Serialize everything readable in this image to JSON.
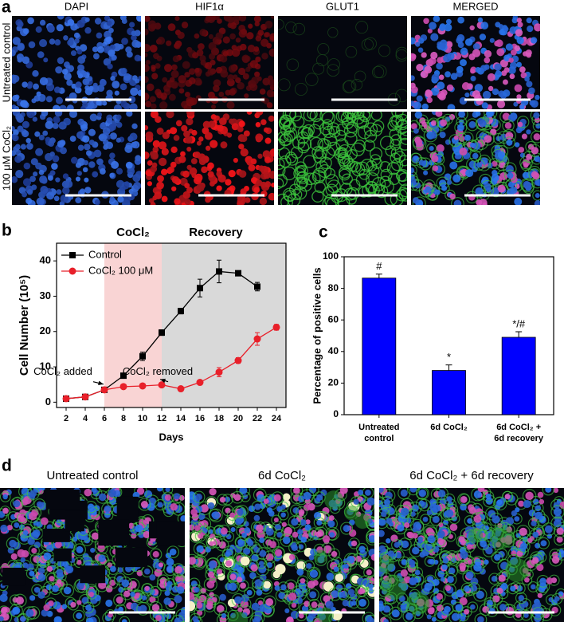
{
  "panel_labels": [
    "a",
    "b",
    "c",
    "d"
  ],
  "panel_a": {
    "columns": [
      "DAPI",
      "HIF1α",
      "GLUT1",
      "MERGED"
    ],
    "rows": [
      "Untreated control",
      "100 μM CoCl₂"
    ]
  },
  "chart_data": [
    {
      "type": "line",
      "xlabel": "Days",
      "ylabel": "Cell Number (10⁵)",
      "x": [
        2,
        4,
        6,
        8,
        10,
        12,
        14,
        16,
        18,
        20,
        22,
        24
      ],
      "xlim": [
        1,
        25
      ],
      "xticks": [
        2,
        4,
        6,
        8,
        10,
        12,
        14,
        16,
        18,
        20,
        22,
        24
      ],
      "ylim": [
        -1.5,
        45
      ],
      "yticks": [
        0,
        10,
        20,
        30,
        40
      ],
      "legend": "upper left",
      "regions": [
        {
          "label": "CoCl₂",
          "start": 6,
          "end": 12,
          "color": "#f9d4d4"
        },
        {
          "label": "Recovery",
          "start": 12,
          "end": 25,
          "color": "#d9d9d9"
        }
      ],
      "annotations": [
        {
          "text": "CoCl₂ added",
          "x": 6
        },
        {
          "text": "CoCl₂ removed",
          "x": 12
        }
      ],
      "series": [
        {
          "name": "Control",
          "color": "#000000",
          "marker": "square",
          "values": [
            1,
            1.5,
            3.5,
            7.5,
            13,
            19.7,
            25.8,
            32.3,
            37,
            36.5,
            32.7,
            null
          ],
          "errors": [
            0.3,
            0.3,
            0.4,
            0.5,
            1.2,
            0.8,
            0.8,
            2.5,
            3.2,
            0.5,
            1.2,
            null
          ]
        },
        {
          "name": "CoCl₂ 100 μM",
          "color": "#e8202a",
          "marker": "circle",
          "values": [
            1,
            1.5,
            3.5,
            4.4,
            4.6,
            4.9,
            3.8,
            5.6,
            8.5,
            11.8,
            17.9,
            21.2
          ],
          "errors": [
            0.3,
            0.3,
            0.4,
            0.4,
            0.5,
            0.4,
            0.3,
            0.6,
            1.3,
            0.8,
            1.8,
            0.8
          ]
        }
      ]
    },
    {
      "type": "bar",
      "ylabel": "Percentage of positive cells",
      "categories": [
        "Untreated\ncontrol",
        "6d CoCl₂",
        "6d CoCl₂ +\n6d recovery"
      ],
      "values": [
        86.5,
        28,
        49
      ],
      "errors": [
        2.5,
        3.5,
        3.5
      ],
      "significance": [
        "#",
        "*",
        "*/#"
      ],
      "color": "#0000ff",
      "ylim": [
        0,
        100
      ],
      "yticks": [
        0,
        20,
        40,
        60,
        80,
        100
      ]
    }
  ],
  "panel_d": {
    "titles": [
      "Untreated control",
      "6d CoCl₂",
      "6d CoCl₂ + 6d recovery"
    ]
  }
}
